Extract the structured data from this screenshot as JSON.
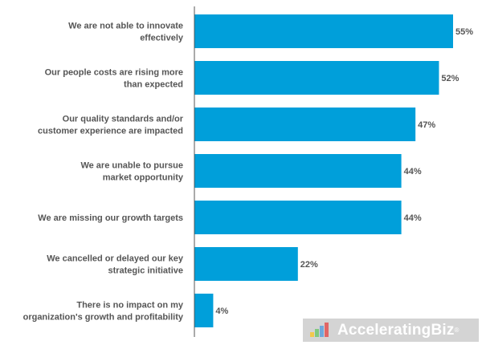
{
  "chart_data": {
    "type": "bar",
    "orientation": "horizontal",
    "categories": [
      [
        "We are not able to innovate",
        "effectively"
      ],
      [
        "Our people costs are rising more",
        "than expected"
      ],
      [
        "Our quality standards and/or",
        "customer experience are impacted"
      ],
      [
        "We are unable to pursue",
        "market opportunity"
      ],
      [
        "We are missing our growth targets"
      ],
      [
        "We cancelled or delayed our key",
        "strategic initiative"
      ],
      [
        "There is no impact on my",
        "organization's growth and profitability"
      ]
    ],
    "values": [
      55,
      52,
      47,
      44,
      44,
      22,
      4
    ],
    "value_labels": [
      "55%",
      "52%",
      "47%",
      "44%",
      "44%",
      "22%",
      "4%"
    ],
    "xlim": [
      0,
      55
    ],
    "bar_color": "#009fda",
    "grid": false,
    "legend": "none"
  },
  "watermark": {
    "text": "AcceleratingBiz",
    "mark": "®"
  }
}
